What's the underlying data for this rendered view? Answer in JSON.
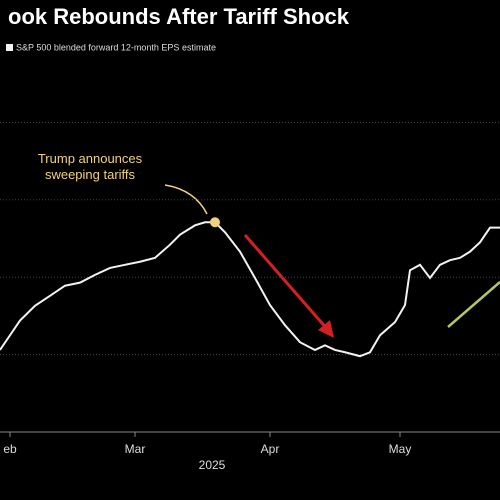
{
  "chart_data": {
    "type": "line",
    "title": "ook Rebounds After Tariff Shock",
    "annotation": "Trump announces sweeping tariffs",
    "year_label": "2025",
    "x": [
      0,
      2,
      4,
      7,
      10,
      13,
      16,
      19,
      22,
      25,
      28,
      31,
      34,
      36,
      39,
      41,
      43,
      45,
      48,
      51,
      54,
      57,
      60,
      63,
      65,
      67,
      69,
      72,
      74,
      76,
      79,
      81,
      82,
      84,
      86,
      88,
      90,
      92,
      94,
      96,
      98,
      100
    ],
    "series": [
      {
        "name": "S&P 500 blended forward 12-month EPS estimate",
        "color": "#f2f2f2",
        "values": [
          1.06,
          1.25,
          1.44,
          1.63,
          1.76,
          1.89,
          1.93,
          2.03,
          2.12,
          2.16,
          2.2,
          2.25,
          2.42,
          2.55,
          2.67,
          2.71,
          2.71,
          2.58,
          2.33,
          1.99,
          1.64,
          1.38,
          1.16,
          1.06,
          1.12,
          1.06,
          1.03,
          0.98,
          1.03,
          1.25,
          1.42,
          1.64,
          2.09,
          2.16,
          1.99,
          2.16,
          2.22,
          2.25,
          2.33,
          2.45,
          2.64,
          2.64
        ]
      }
    ],
    "highlight": {
      "x": 43,
      "value": 2.71,
      "color": "#f0d27a"
    },
    "xlim": [
      0,
      100
    ],
    "ylim": [
      0,
      5
    ],
    "xticks": [
      {
        "value": 2,
        "label": "eb"
      },
      {
        "value": 27,
        "label": "Mar"
      },
      {
        "value": 54,
        "label": "Apr"
      },
      {
        "value": 80,
        "label": "May"
      }
    ],
    "yticks": [
      1,
      2,
      3,
      4
    ],
    "grid": true
  }
}
